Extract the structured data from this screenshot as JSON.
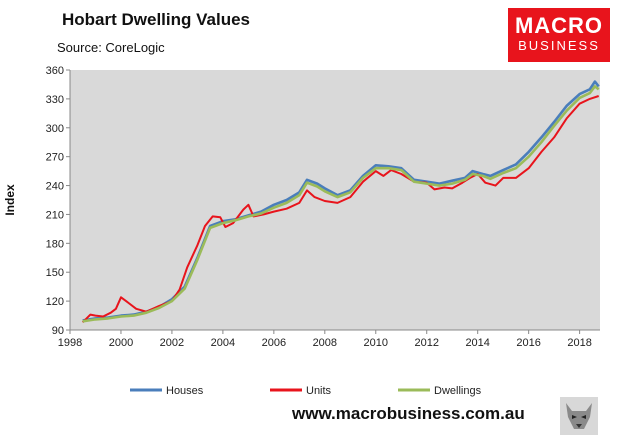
{
  "header": {
    "title": "Hobart Dwelling Values",
    "source": "Source: CoreLogic"
  },
  "logo": {
    "line1": "MACRO",
    "line2": "BUSINESS",
    "color": "#e8141c"
  },
  "footer": {
    "url": "www.macrobusiness.com.au"
  },
  "wolf_icon": "wolf-logo-icon",
  "chart_data": {
    "type": "line",
    "ylabel": "Index",
    "xlabel": "",
    "xlim": [
      1998,
      2018.8
    ],
    "ylim": [
      90,
      360
    ],
    "yticks": [
      90,
      120,
      150,
      180,
      210,
      240,
      270,
      300,
      330,
      360
    ],
    "xticks": [
      1998,
      2000,
      2002,
      2004,
      2006,
      2008,
      2010,
      2012,
      2014,
      2016,
      2018
    ],
    "grid": false,
    "legend_position": "bottom",
    "series": [
      {
        "name": "Houses",
        "color": "#4a7ebb",
        "points": [
          [
            1998.5,
            100
          ],
          [
            1999,
            102
          ],
          [
            1999.5,
            103
          ],
          [
            2000,
            105
          ],
          [
            2000.5,
            106
          ],
          [
            2001,
            109
          ],
          [
            2001.5,
            114
          ],
          [
            2002,
            122
          ],
          [
            2002.5,
            135
          ],
          [
            2003,
            165
          ],
          [
            2003.5,
            198
          ],
          [
            2004,
            203
          ],
          [
            2004.5,
            205
          ],
          [
            2005,
            209
          ],
          [
            2005.5,
            213
          ],
          [
            2006,
            220
          ],
          [
            2006.5,
            225
          ],
          [
            2007,
            233
          ],
          [
            2007.3,
            246
          ],
          [
            2007.7,
            242
          ],
          [
            2008,
            237
          ],
          [
            2008.5,
            230
          ],
          [
            2009,
            235
          ],
          [
            2009.5,
            250
          ],
          [
            2010,
            261
          ],
          [
            2010.5,
            260
          ],
          [
            2011,
            258
          ],
          [
            2011.5,
            246
          ],
          [
            2012,
            244
          ],
          [
            2012.5,
            242
          ],
          [
            2013,
            245
          ],
          [
            2013.5,
            248
          ],
          [
            2013.8,
            255
          ],
          [
            2014.2,
            252
          ],
          [
            2014.5,
            250
          ],
          [
            2015,
            256
          ],
          [
            2015.5,
            262
          ],
          [
            2016,
            275
          ],
          [
            2016.5,
            290
          ],
          [
            2017,
            306
          ],
          [
            2017.5,
            323
          ],
          [
            2018,
            335
          ],
          [
            2018.4,
            340
          ],
          [
            2018.6,
            348
          ],
          [
            2018.75,
            343
          ]
        ]
      },
      {
        "name": "Units",
        "color": "#e8141c",
        "points": [
          [
            1998.5,
            98
          ],
          [
            1998.8,
            106
          ],
          [
            1999,
            105
          ],
          [
            1999.3,
            104
          ],
          [
            1999.6,
            108
          ],
          [
            1999.8,
            112
          ],
          [
            2000,
            124
          ],
          [
            2000.3,
            118
          ],
          [
            2000.6,
            112
          ],
          [
            2001,
            109
          ],
          [
            2001.5,
            115
          ],
          [
            2002,
            120
          ],
          [
            2002.3,
            132
          ],
          [
            2002.6,
            155
          ],
          [
            2003,
            178
          ],
          [
            2003.3,
            198
          ],
          [
            2003.6,
            208
          ],
          [
            2003.9,
            207
          ],
          [
            2004.1,
            197
          ],
          [
            2004.4,
            201
          ],
          [
            2004.8,
            215
          ],
          [
            2005,
            220
          ],
          [
            2005.2,
            208
          ],
          [
            2005.6,
            210
          ],
          [
            2006,
            213
          ],
          [
            2006.5,
            216
          ],
          [
            2007,
            222
          ],
          [
            2007.3,
            235
          ],
          [
            2007.6,
            228
          ],
          [
            2008,
            224
          ],
          [
            2008.5,
            222
          ],
          [
            2009,
            228
          ],
          [
            2009.5,
            244
          ],
          [
            2010,
            255
          ],
          [
            2010.3,
            250
          ],
          [
            2010.6,
            256
          ],
          [
            2011,
            252
          ],
          [
            2011.5,
            244
          ],
          [
            2012,
            243
          ],
          [
            2012.3,
            236
          ],
          [
            2012.7,
            238
          ],
          [
            2013,
            237
          ],
          [
            2013.4,
            243
          ],
          [
            2013.7,
            248
          ],
          [
            2014,
            252
          ],
          [
            2014.3,
            243
          ],
          [
            2014.7,
            240
          ],
          [
            2015,
            248
          ],
          [
            2015.5,
            248
          ],
          [
            2016,
            258
          ],
          [
            2016.5,
            275
          ],
          [
            2017,
            290
          ],
          [
            2017.5,
            310
          ],
          [
            2018,
            325
          ],
          [
            2018.4,
            330
          ],
          [
            2018.75,
            333
          ]
        ]
      },
      {
        "name": "Dwellings",
        "color": "#9bbb59",
        "points": [
          [
            1998.5,
            99
          ],
          [
            1999,
            101
          ],
          [
            1999.5,
            102
          ],
          [
            2000,
            104
          ],
          [
            2000.5,
            105
          ],
          [
            2001,
            108
          ],
          [
            2001.5,
            113
          ],
          [
            2002,
            120
          ],
          [
            2002.5,
            133
          ],
          [
            2003,
            163
          ],
          [
            2003.5,
            196
          ],
          [
            2004,
            201
          ],
          [
            2004.5,
            204
          ],
          [
            2005,
            208
          ],
          [
            2005.5,
            211
          ],
          [
            2006,
            217
          ],
          [
            2006.5,
            222
          ],
          [
            2007,
            230
          ],
          [
            2007.3,
            243
          ],
          [
            2007.7,
            239
          ],
          [
            2008,
            234
          ],
          [
            2008.5,
            228
          ],
          [
            2009,
            233
          ],
          [
            2009.5,
            248
          ],
          [
            2010,
            258
          ],
          [
            2010.5,
            258
          ],
          [
            2011,
            256
          ],
          [
            2011.5,
            244
          ],
          [
            2012,
            242
          ],
          [
            2012.5,
            240
          ],
          [
            2013,
            242
          ],
          [
            2013.5,
            246
          ],
          [
            2013.8,
            252
          ],
          [
            2014.2,
            250
          ],
          [
            2014.5,
            247
          ],
          [
            2015,
            253
          ],
          [
            2015.5,
            258
          ],
          [
            2016,
            270
          ],
          [
            2016.5,
            285
          ],
          [
            2017,
            302
          ],
          [
            2017.5,
            318
          ],
          [
            2018,
            331
          ],
          [
            2018.4,
            336
          ],
          [
            2018.6,
            343
          ],
          [
            2018.75,
            340
          ]
        ]
      }
    ]
  }
}
